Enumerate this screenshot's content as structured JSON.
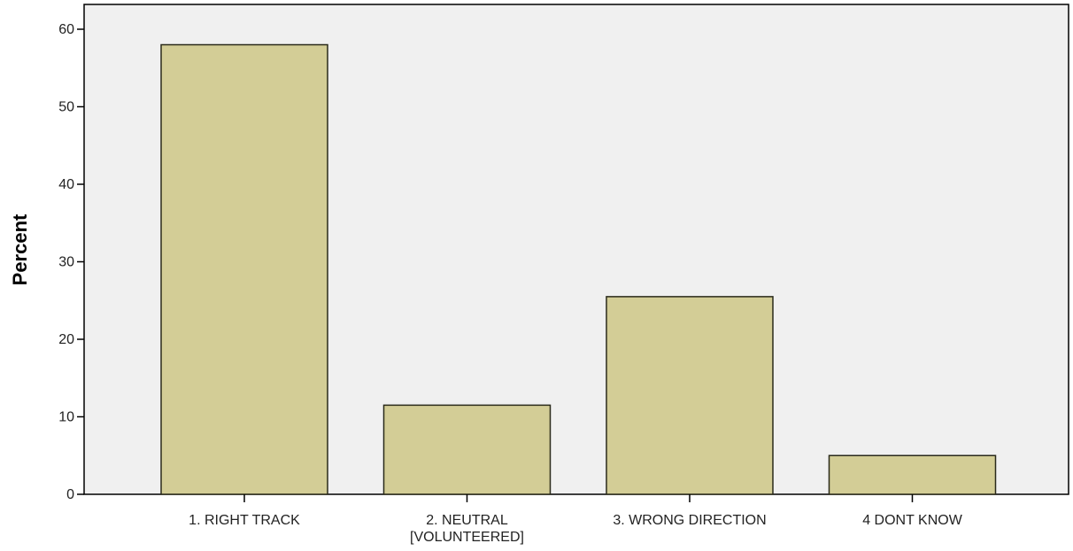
{
  "chart_data": {
    "type": "bar",
    "categories": [
      [
        "1. RIGHT TRACK"
      ],
      [
        "2. NEUTRAL",
        "[VOLUNTEERED]"
      ],
      [
        "3. WRONG DIRECTION"
      ],
      [
        "4 DONT KNOW"
      ]
    ],
    "values": [
      58,
      11.5,
      25.5,
      5
    ],
    "title": "",
    "xlabel": "",
    "ylabel": "Percent",
    "ylim": [
      0,
      60
    ],
    "yticks": [
      0,
      10,
      20,
      30,
      40,
      50,
      60
    ],
    "grid": false,
    "legend": "none",
    "colors": {
      "bar_fill": "#d3cd96",
      "bar_stroke": "#2a2a1a",
      "plot_bg": "#f0f0f0",
      "axis": "#000000"
    }
  }
}
